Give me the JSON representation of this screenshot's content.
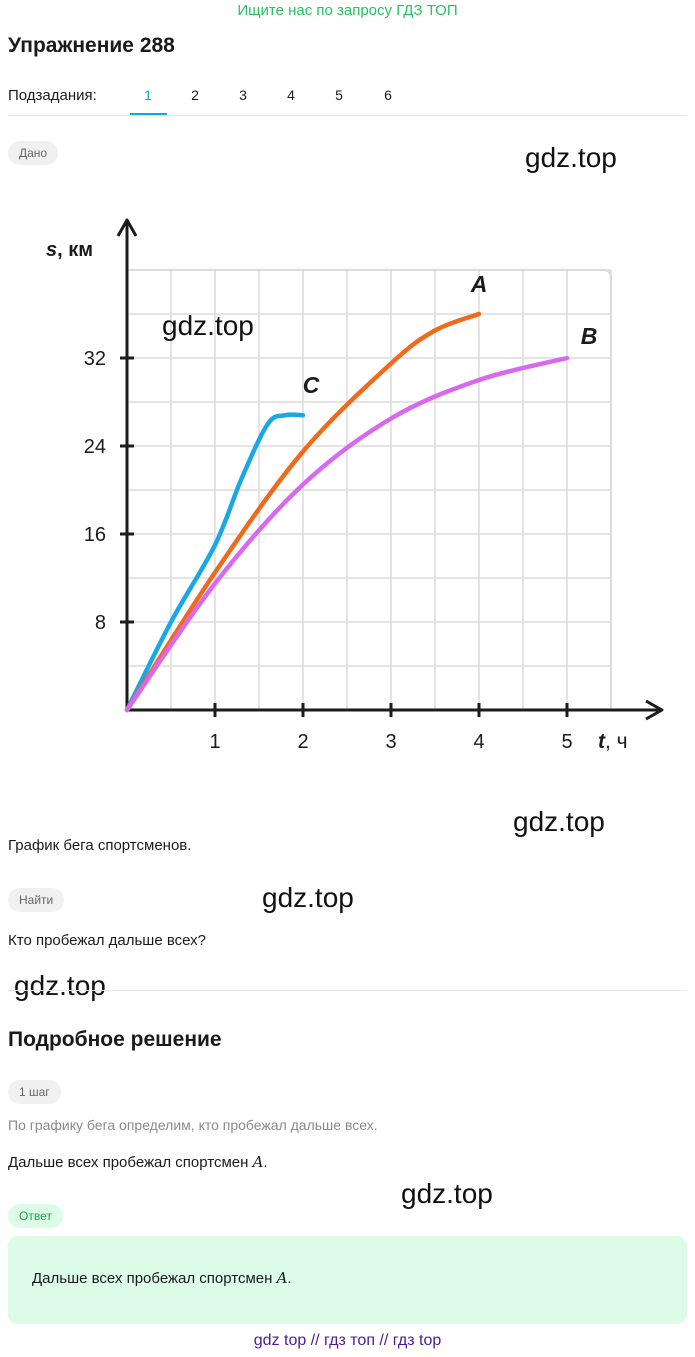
{
  "banner": "Ищите нас по запросу ГДЗ ТОП",
  "title": "Упражнение 288",
  "subtasks": {
    "label": "Подзадания:",
    "items": [
      "1",
      "2",
      "3",
      "4",
      "5",
      "6"
    ],
    "active": "1"
  },
  "given": {
    "badge": "Дано",
    "caption": "График бега спортсменов."
  },
  "find": {
    "badge": "Найти",
    "question": "Кто пробежал дальше всех?"
  },
  "solution": {
    "heading": "Подробное решение",
    "step_badge": "1 шаг",
    "step_hint": "По графику бега определим, кто пробежал дальше всех.",
    "step_text": "Дальше всех пробежал спортсмен ",
    "step_var": "A",
    "step_end": "."
  },
  "answer": {
    "badge": "Ответ",
    "text": "Дальше всех пробежал спортсмен ",
    "var": "A",
    "end": "."
  },
  "watermarks": [
    "gdz.top",
    "gdz.top",
    "gdz.top",
    "gdz.top",
    "gdz.top",
    "gdz.top"
  ],
  "footer": "gdz top  //  гдз топ  //  гдз top",
  "chart_data": {
    "type": "line",
    "ylabel_var": "s",
    "ylabel_unit": ", км",
    "xlabel_var": "t",
    "xlabel_unit": ", ч",
    "x_ticks": [
      "1",
      "2",
      "3",
      "4",
      "5"
    ],
    "y_ticks": [
      "8",
      "16",
      "24",
      "32"
    ],
    "xlim": [
      0,
      5.5
    ],
    "ylim": [
      0,
      40
    ],
    "series": [
      {
        "name": "C",
        "color": "#1aa7e8",
        "x": [
          0,
          0.5,
          1.0,
          1.3,
          1.6,
          1.8,
          2.0
        ],
        "y": [
          0,
          8,
          15,
          21,
          26,
          26.8,
          26.8
        ]
      },
      {
        "name": "A",
        "color": "#f06a1c",
        "x": [
          0,
          1,
          2,
          3,
          3.5,
          4.0
        ],
        "y": [
          0,
          12.5,
          23.5,
          31.5,
          34.5,
          36
        ]
      },
      {
        "name": "B",
        "color": "#d968f0",
        "x": [
          0,
          1,
          2,
          3,
          4,
          5
        ],
        "y": [
          0,
          11.5,
          20.5,
          26.5,
          30,
          32
        ]
      }
    ]
  }
}
